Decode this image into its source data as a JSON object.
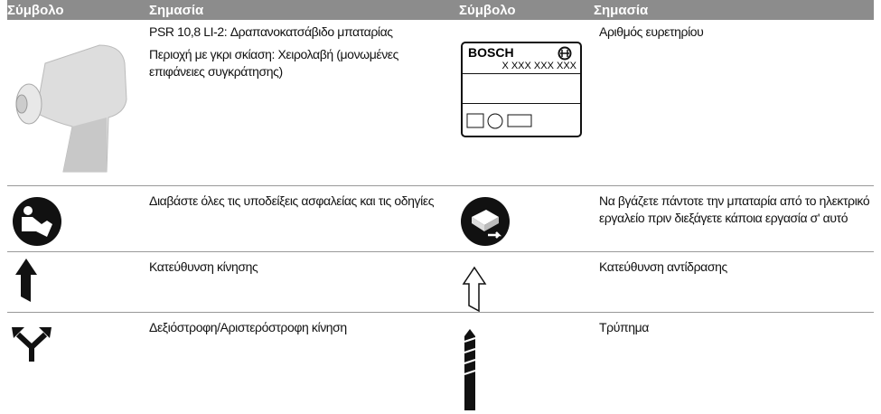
{
  "header": {
    "columns": [
      "Σύμβολο",
      "Σημασία",
      "Σύμβολο",
      "Σημασία"
    ]
  },
  "rows": [
    {
      "left": {
        "texts": [
          "PSR 10,8 LI-2: Δραπανοκατσάβιδο μπαταρίας",
          "Περιοχή με γκρι σκίαση: Χειρολαβή (μονωμένες επιφάνειες συγκράτησης)"
        ]
      },
      "nameplate": {
        "brand": "BOSCH",
        "number": "X XXX XXX XXX"
      },
      "right": {
        "texts": [
          "Αριθμός ευρετηρίου"
        ]
      }
    },
    {
      "left": {
        "texts": [
          "Διαβάστε όλες τις υποδείξεις ασφαλείας και τις οδηγίες"
        ]
      },
      "right": {
        "texts": [
          "Να βγάζετε πάντοτε την μπαταρία από το ηλεκτρικό εργαλείο πριν διεξάγετε κάποια εργασία σ' αυτό"
        ]
      }
    },
    {
      "left": {
        "texts": [
          "Κατεύθυνση κίνησης"
        ]
      },
      "right": {
        "texts": [
          "Κατεύθυνση αντίδρασης"
        ]
      }
    },
    {
      "left": {
        "texts": [
          "Δεξιόστροφη/Αριστερόστροφη κίνηση"
        ]
      },
      "right": {
        "texts": [
          "Τρύπημα"
        ]
      }
    }
  ]
}
